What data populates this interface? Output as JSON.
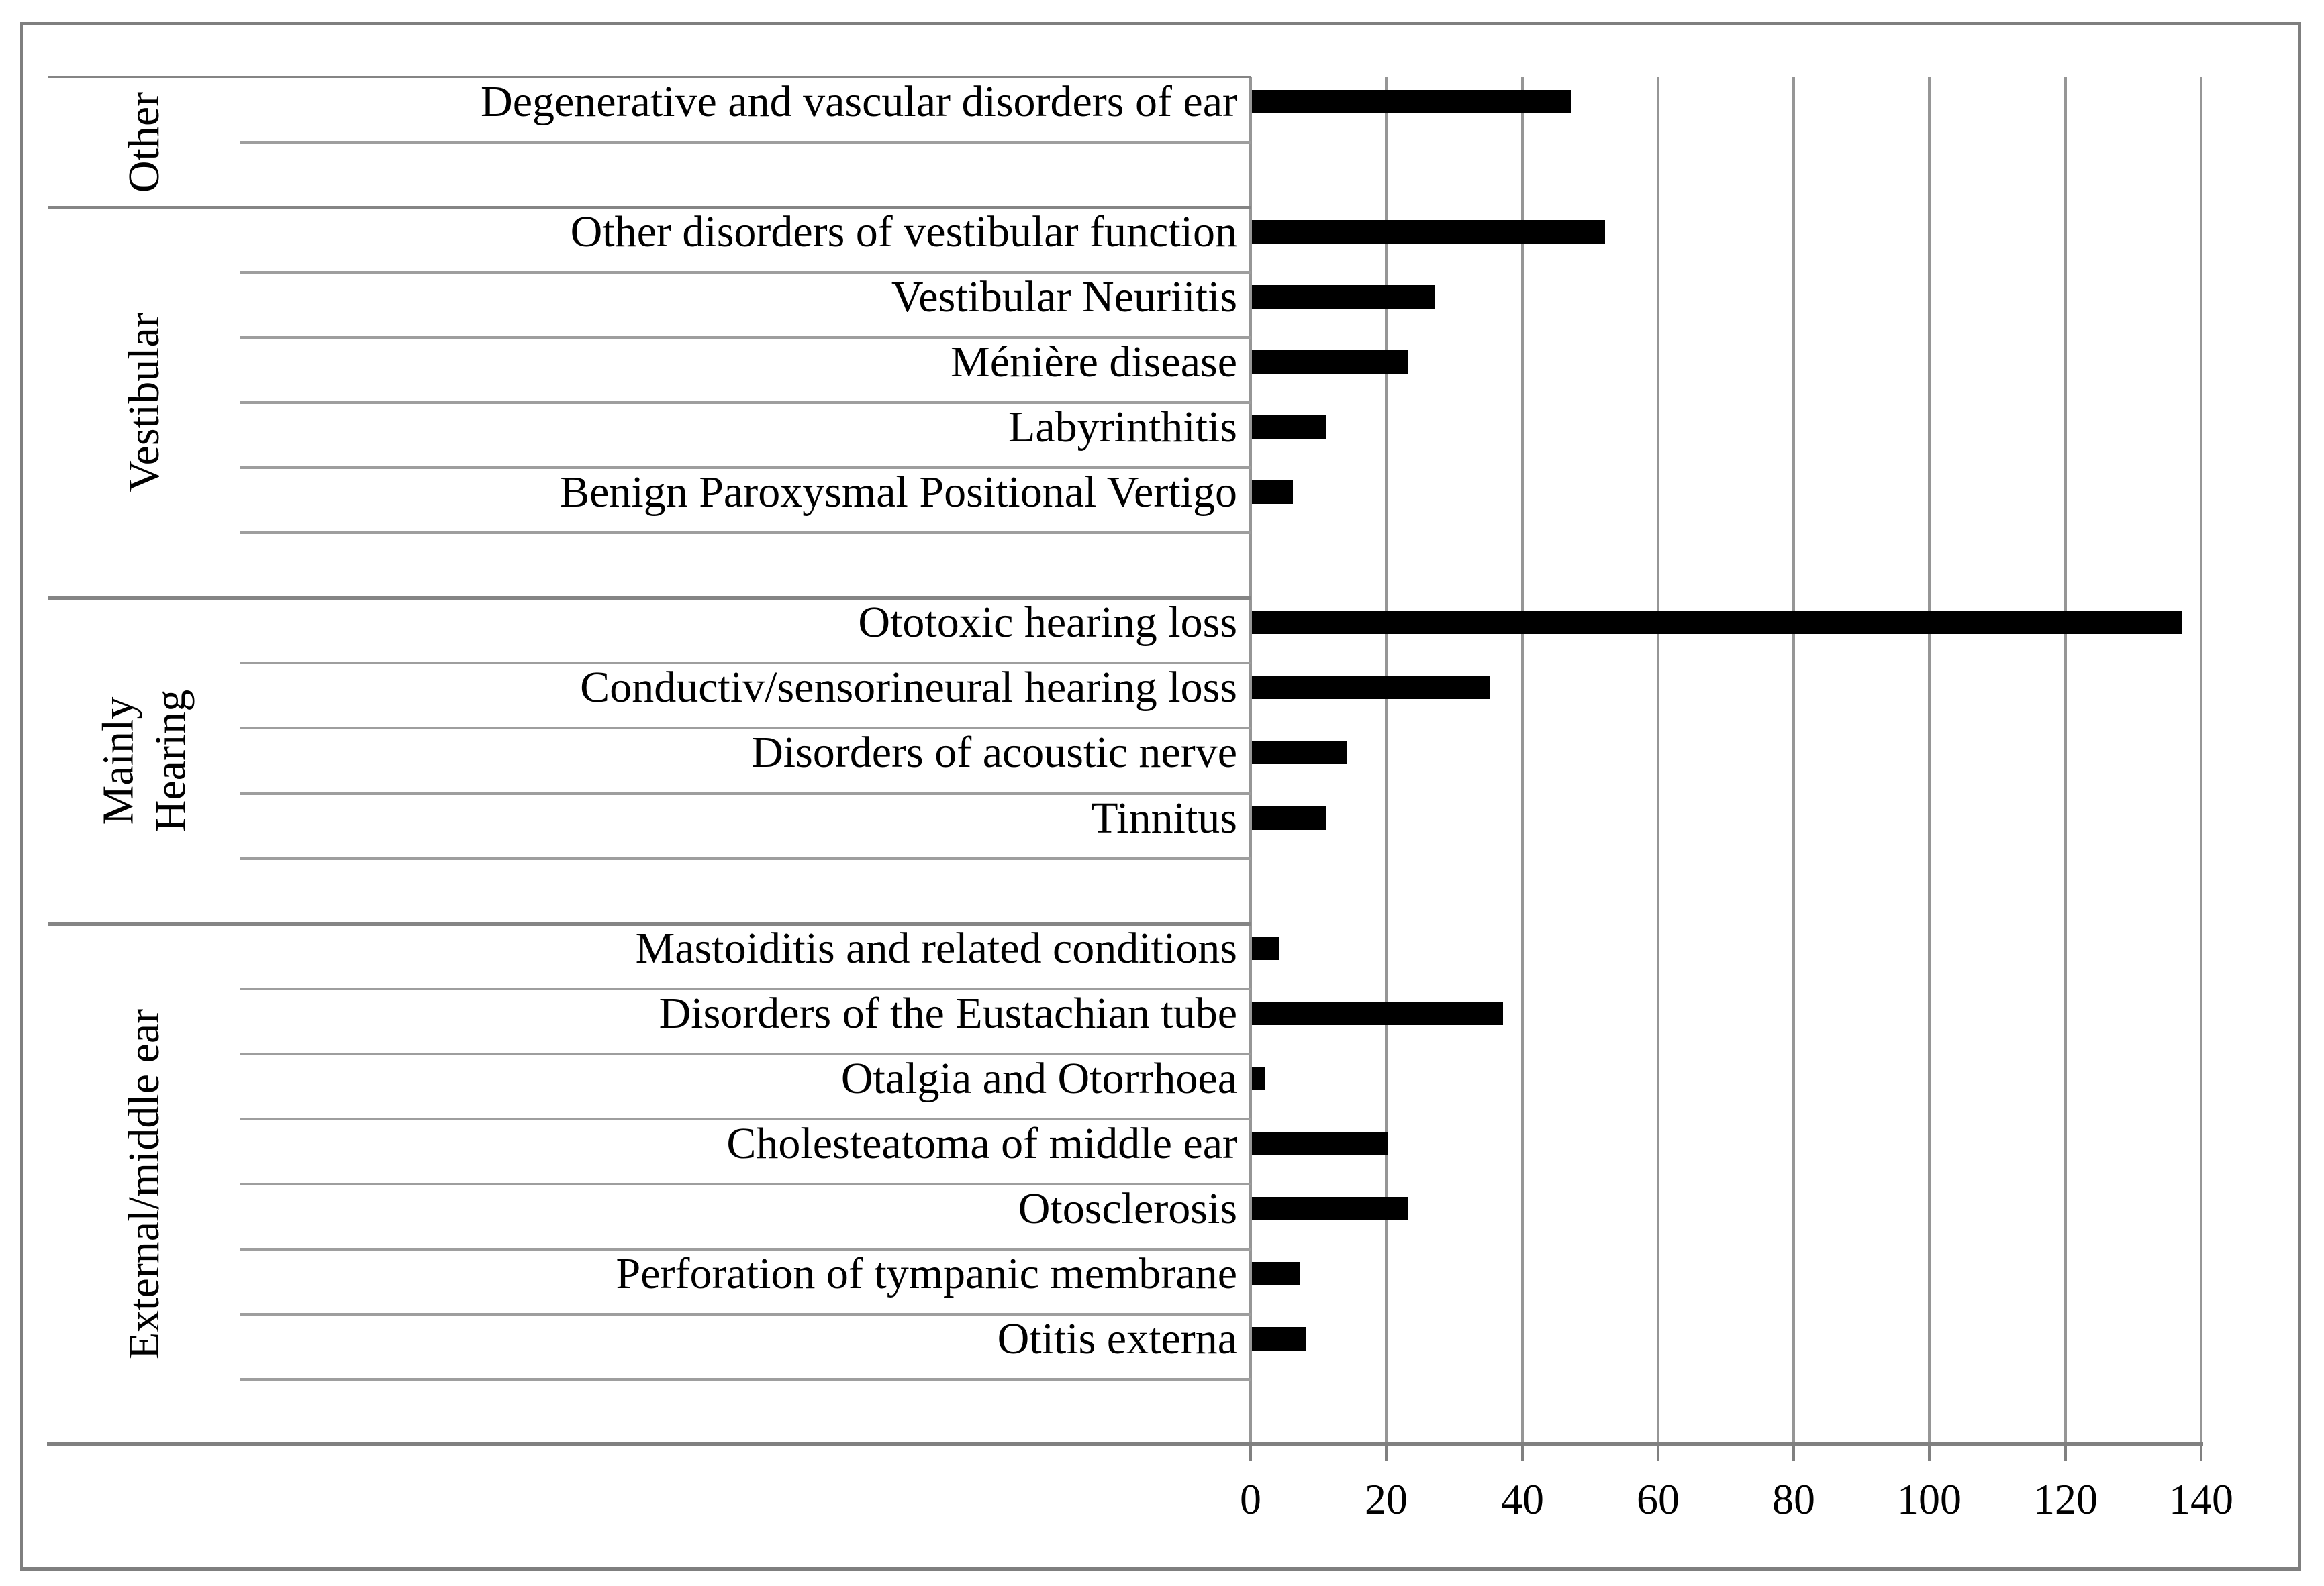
{
  "chart_data": {
    "type": "bar",
    "orientation": "horizontal",
    "title": "",
    "xlabel": "",
    "ylabel": "",
    "legend": "none",
    "grid": "vertical gridlines at every tick",
    "value_axis": {
      "min": 0,
      "max": 140,
      "tick_step": 20,
      "ticks": [
        0,
        20,
        40,
        60,
        80,
        100,
        120,
        140
      ],
      "tick_labels": [
        "0",
        "20",
        "40",
        "60",
        "80",
        "100",
        "120",
        "140"
      ]
    },
    "groups": [
      {
        "label": "Other",
        "label_lines": [
          "Other"
        ],
        "blank_rows_after": 1,
        "items": [
          {
            "label": "Degenerative and vascular disorders of ear",
            "value": 47
          }
        ]
      },
      {
        "label": "Vestibular",
        "label_lines": [
          "Vestibular"
        ],
        "blank_rows_after": 1,
        "items": [
          {
            "label": "Other disorders of vestibular function",
            "value": 52
          },
          {
            "label": "Vestibular Neuriitis",
            "value": 27
          },
          {
            "label": "Ménière disease",
            "value": 23
          },
          {
            "label": "Labyrinthitis",
            "value": 11
          },
          {
            "label": "Benign Paroxysmal Positional Vertigo",
            "value": 6
          }
        ]
      },
      {
        "label": "Mainly Hearing",
        "label_lines": [
          "Mainly",
          "Hearing"
        ],
        "blank_rows_after": 1,
        "items": [
          {
            "label": "Ototoxic hearing loss",
            "value": 137
          },
          {
            "label": "Conductiv/sensorineural hearing loss",
            "value": 35
          },
          {
            "label": "Disorders of acoustic nerve",
            "value": 14
          },
          {
            "label": "Tinnitus",
            "value": 11
          }
        ]
      },
      {
        "label": "External/middle ear",
        "label_lines": [
          "External/middle ear"
        ],
        "blank_rows_after": 1,
        "items": [
          {
            "label": "Mastoiditis and related conditions",
            "value": 4
          },
          {
            "label": "Disorders of the Eustachian tube",
            "value": 37
          },
          {
            "label": "Otalgia and Otorrhoea",
            "value": 2
          },
          {
            "label": "Cholesteatoma of middle ear",
            "value": 20
          },
          {
            "label": "Otosclerosis",
            "value": 23
          },
          {
            "label": "Perforation of tympanic membrane",
            "value": 7
          },
          {
            "label": "Otitis externa",
            "value": 8
          }
        ]
      }
    ],
    "colors": {
      "bar": "#000000",
      "grid_line": "#969696",
      "row_line": "#9e9e9e",
      "group_line": "#858585",
      "axis_line": "#808080",
      "border": "#7f7f7f",
      "text": "#000000",
      "background": "#ffffff"
    }
  }
}
